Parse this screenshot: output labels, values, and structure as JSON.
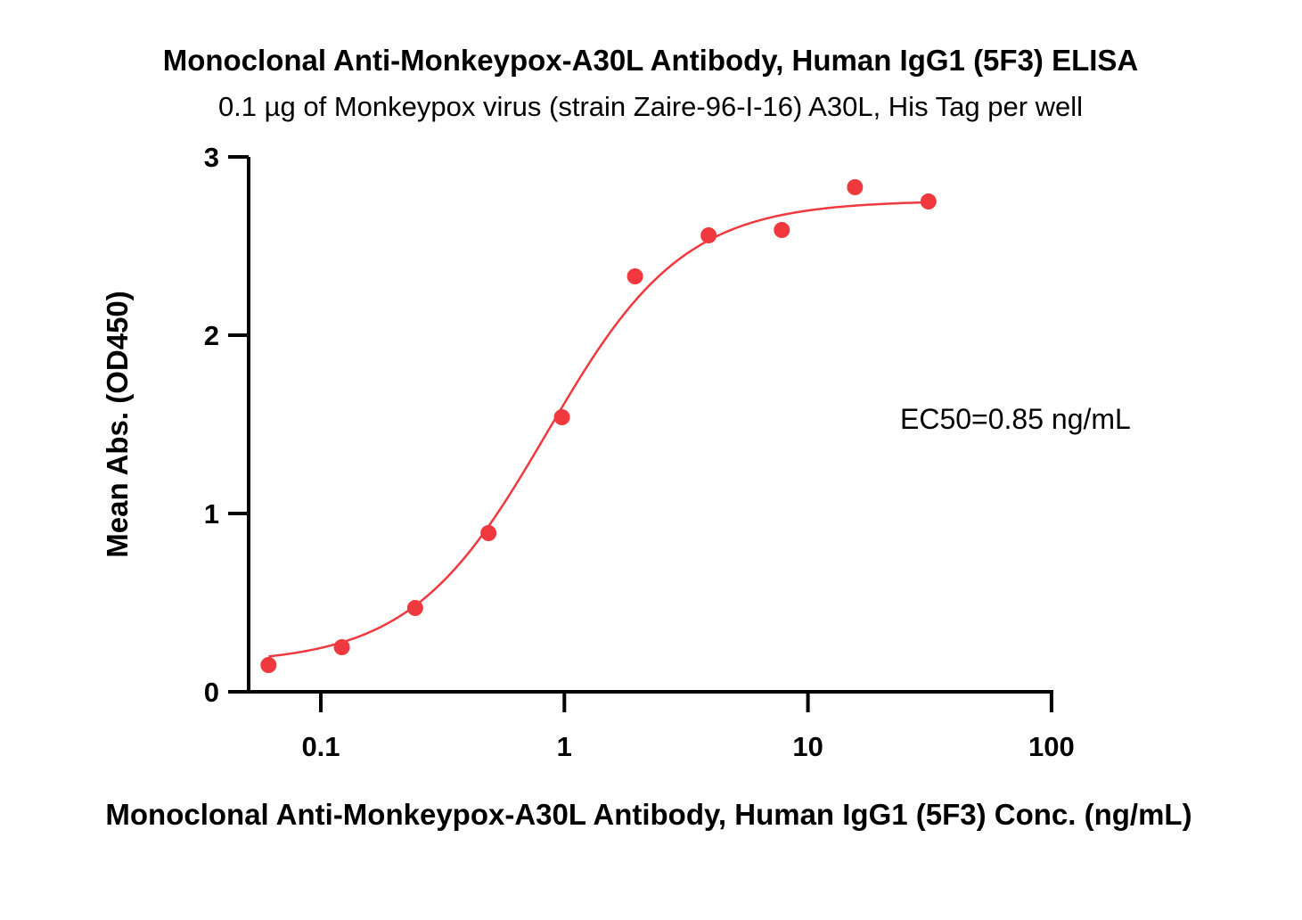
{
  "chart_data": {
    "type": "scatter",
    "title": "Monoclonal Anti-Monkeypox-A30L Antibody, Human IgG1 (5F3) ELISA",
    "subtitle": "0.1 µg of Monkeypox virus (strain Zaire-96-I-16) A30L, His Tag per well",
    "xlabel": "Monoclonal Anti-Monkeypox-A30L Antibody, Human IgG1 (5F3) Conc. (ng/mL)",
    "ylabel": "Mean Abs. (OD450)",
    "x_scale": "log",
    "xlim": [
      0.05,
      100
    ],
    "ylim": [
      0,
      3
    ],
    "x_ticks": [
      0.1,
      1,
      10,
      100
    ],
    "x_tick_labels": [
      "0.1",
      "1",
      "10",
      "100"
    ],
    "y_ticks": [
      0,
      1,
      2,
      3
    ],
    "y_tick_labels": [
      "0",
      "1",
      "2",
      "3"
    ],
    "grid": false,
    "legend": "none",
    "series": [
      {
        "style": "points",
        "color": "#F0393E",
        "x": [
          0.061,
          0.122,
          0.244,
          0.488,
          0.977,
          1.95,
          3.91,
          7.81,
          15.6,
          31.25
        ],
        "y": [
          0.15,
          0.25,
          0.47,
          0.89,
          1.54,
          2.33,
          2.56,
          2.59,
          2.83,
          2.75
        ]
      },
      {
        "style": "curve",
        "fit": "4PL",
        "color": "#F0393E",
        "bottom": 0.155,
        "top": 2.755,
        "ec50": 0.85,
        "hill": 1.55
      }
    ],
    "annotations": [
      {
        "text": "EC50=0.85 ng/mL"
      }
    ]
  }
}
